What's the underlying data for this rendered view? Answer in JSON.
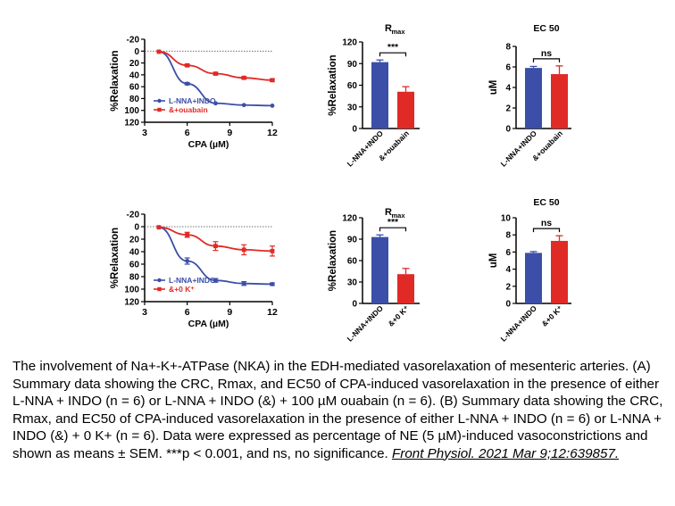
{
  "colors": {
    "blue": "#3b4fa8",
    "red": "#e02a26",
    "axis": "#000000"
  },
  "chart_data": [
    {
      "type": "line",
      "panel": "A-curve",
      "xlabel": "CPA (µM)",
      "ylabel": "%Relaxation",
      "xlim": [
        3,
        12
      ],
      "ylim": [
        -20,
        120
      ],
      "y_inverted": true,
      "xticks": [
        "3",
        "6",
        "9",
        "12"
      ],
      "yticks": [
        "-20",
        "0",
        "20",
        "40",
        "60",
        "80",
        "100",
        "120"
      ],
      "legend_position": "bottom-left",
      "series": [
        {
          "name": "L-NNA+INDO",
          "color": "#3b4fa8",
          "x": [
            4,
            6,
            8,
            10,
            12
          ],
          "y": [
            1,
            55,
            88,
            91,
            92
          ],
          "err": [
            1,
            2,
            1,
            1,
            1
          ]
        },
        {
          "name": "&+ouabain",
          "color": "#e02a26",
          "x": [
            4,
            6,
            8,
            10,
            12
          ],
          "y": [
            1,
            24,
            38,
            45,
            49
          ],
          "err": [
            1,
            2,
            2,
            2,
            2
          ]
        }
      ]
    },
    {
      "type": "bar",
      "panel": "A-rmax",
      "title": "R",
      "title_sub": "max",
      "ylabel": "%Relaxation",
      "ylim": [
        0,
        120
      ],
      "yticks": [
        "0",
        "30",
        "60",
        "90",
        "120"
      ],
      "categories": [
        "L-NNA+INDO",
        "&+ouabain"
      ],
      "values": [
        92,
        51
      ],
      "err": [
        3,
        7
      ],
      "significance": "***"
    },
    {
      "type": "bar",
      "panel": "A-ec50",
      "title": "EC 50",
      "ylabel": "uM",
      "ylim": [
        0,
        8
      ],
      "yticks": [
        "0",
        "2",
        "4",
        "6",
        "8"
      ],
      "categories": [
        "L-NNA+INDO",
        "&+ouabain"
      ],
      "values": [
        5.9,
        5.3
      ],
      "err": [
        0.15,
        0.8
      ],
      "significance": "ns"
    },
    {
      "type": "line",
      "panel": "B-curve",
      "xlabel": "CPA (µM)",
      "ylabel": "%Relaxation",
      "xlim": [
        3,
        12
      ],
      "ylim": [
        -20,
        120
      ],
      "y_inverted": true,
      "xticks": [
        "3",
        "6",
        "9",
        "12"
      ],
      "yticks": [
        "-20",
        "0",
        "20",
        "40",
        "60",
        "80",
        "100",
        "120"
      ],
      "legend_position": "bottom-left",
      "series": [
        {
          "name": "L-NNA+INDO",
          "color": "#3b4fa8",
          "x": [
            4,
            6,
            8,
            10,
            12
          ],
          "y": [
            1,
            55,
            86,
            91,
            92
          ],
          "err": [
            1,
            5,
            3,
            3,
            2
          ]
        },
        {
          "name": "&+0 K⁺",
          "color": "#e02a26",
          "x": [
            4,
            6,
            8,
            10,
            12
          ],
          "y": [
            1,
            13,
            31,
            37,
            39
          ],
          "err": [
            1,
            4,
            7,
            8,
            8
          ]
        }
      ]
    },
    {
      "type": "bar",
      "panel": "B-rmax",
      "title": "R",
      "title_sub": "max",
      "ylabel": "%Relaxation",
      "ylim": [
        0,
        120
      ],
      "yticks": [
        "0",
        "30",
        "60",
        "90",
        "120"
      ],
      "categories": [
        "L-NNA+INDO",
        "&+0 K⁺"
      ],
      "values": [
        93,
        41
      ],
      "err": [
        3,
        8
      ],
      "significance": "***"
    },
    {
      "type": "bar",
      "panel": "B-ec50",
      "title": "EC 50",
      "ylabel": "uM",
      "ylim": [
        0,
        10
      ],
      "yticks": [
        "0",
        "2",
        "4",
        "6",
        "8",
        "10"
      ],
      "categories": [
        "L-NNA+INDO",
        "&+0 K⁺"
      ],
      "values": [
        5.9,
        7.3
      ],
      "err": [
        0.15,
        0.6
      ],
      "significance": "ns"
    }
  ],
  "caption": {
    "text": "The involvement of Na+-K+-ATPase (NKA) in the EDH-mediated vasorelaxation of mesenteric arteries. (A) Summary data showing the CRC, Rmax, and EC50 of CPA-induced vasorelaxation in the presence of either L-NNA + INDO (n = 6) or L-NNA + INDO (&) + 100 µM ouabain (n = 6). (B) Summary data showing the CRC, Rmax, and EC50 of CPA-induced vasorelaxation in the presence of either L-NNA + INDO (n = 6) or L-NNA + INDO (&) + 0 K+ (n = 6). Data were expressed as percentage of NE (5 µM)-induced vasoconstrictions and shown as means ± SEM. ***p < 0.001, and ns, no significance.",
    "citation": "Front Physiol. 2021 Mar 9;12:639857."
  }
}
